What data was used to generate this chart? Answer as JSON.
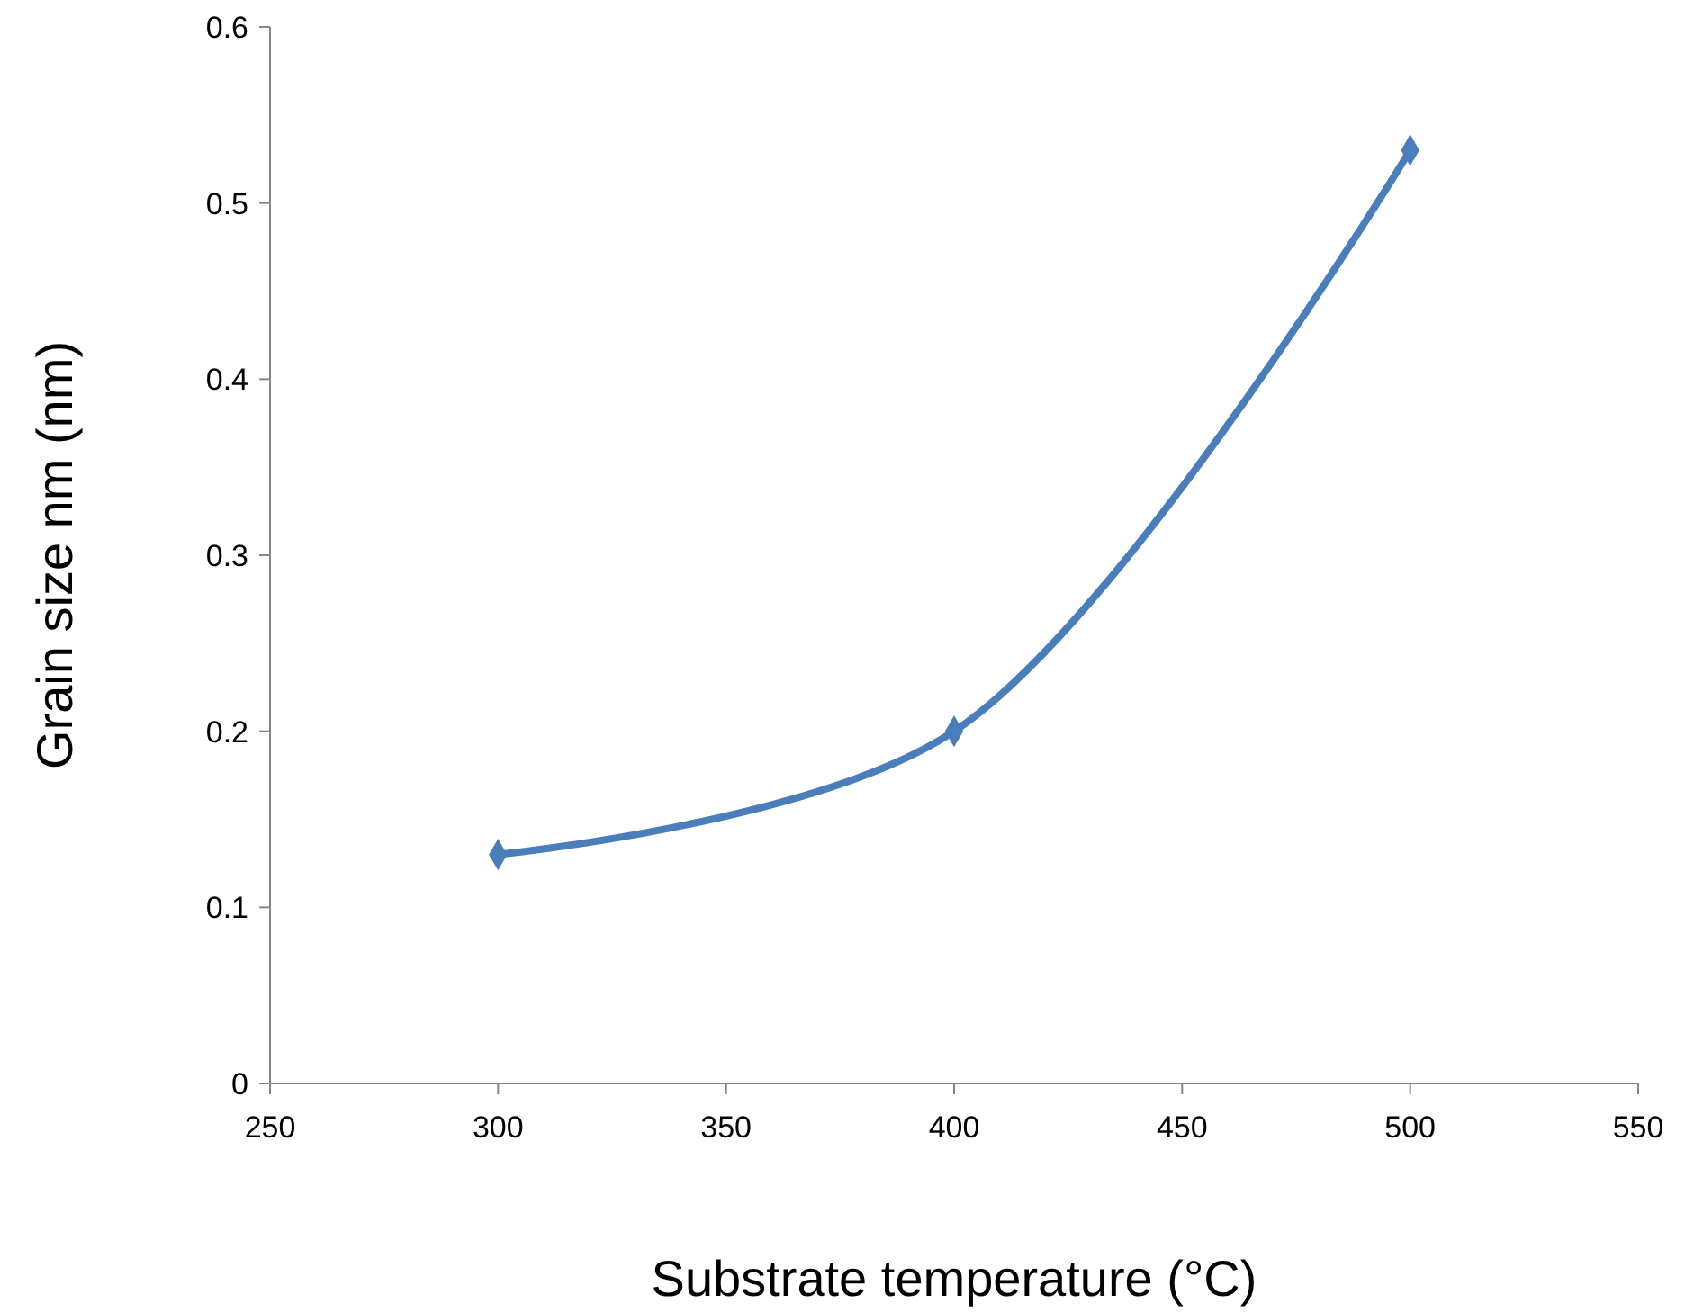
{
  "chart_data": {
    "type": "line",
    "xlabel": "Substrate temperature (°C)",
    "ylabel": "Grain size nm (nm)",
    "x": [
      300,
      400,
      500
    ],
    "series": [
      {
        "color": "#4a7ebb",
        "values": [
          0.13,
          0.2,
          0.53
        ]
      }
    ],
    "xlim": [
      250,
      550
    ],
    "xticks": [
      250,
      300,
      350,
      400,
      450,
      500,
      550
    ],
    "ylim": [
      0,
      0.6
    ],
    "yticks": [
      0,
      0.1,
      0.2,
      0.3,
      0.4,
      0.5,
      0.6
    ],
    "grid": false,
    "marker": "diamond",
    "line_style": "solid"
  }
}
